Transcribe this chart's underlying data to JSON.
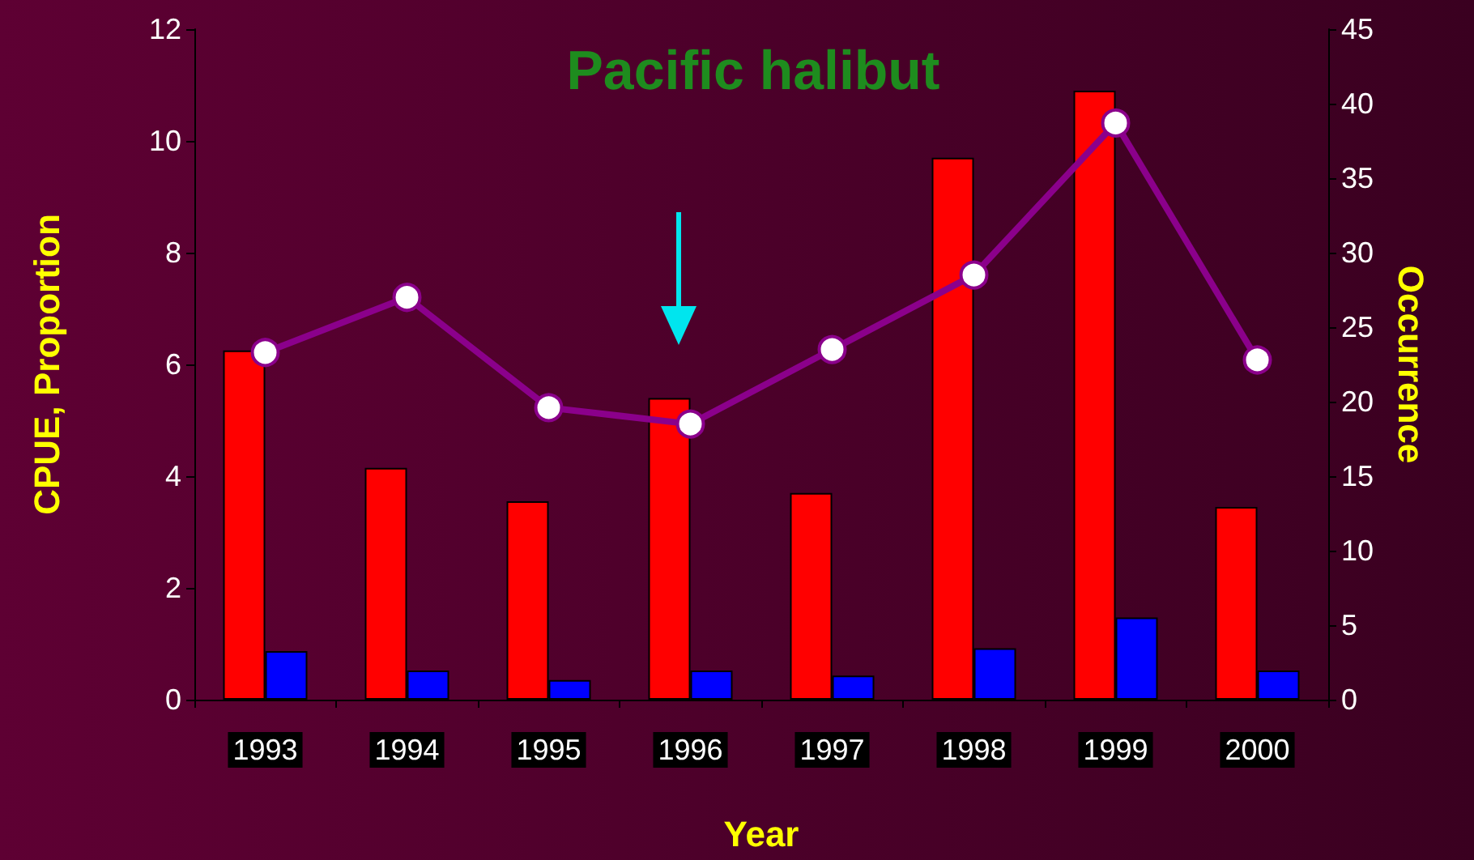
{
  "chart_data": {
    "type": "bar",
    "title": "Pacific halibut",
    "xlabel": "Year",
    "ylabel": "CPUE, Proportion",
    "y2label": "Occurrence",
    "categories": [
      "1993",
      "1994",
      "1995",
      "1996",
      "1997",
      "1998",
      "1999",
      "2000"
    ],
    "series": [
      {
        "color": "#ff0000",
        "values": [
          6.25,
          4.15,
          3.55,
          5.4,
          3.7,
          9.7,
          10.9,
          3.45
        ]
      },
      {
        "color": "#0000ff",
        "values": [
          0.87,
          0.52,
          0.35,
          0.52,
          0.43,
          0.92,
          1.47,
          0.52
        ]
      },
      {
        "type": "line",
        "axis": "y2",
        "color": "#8b008b",
        "marker": "circle",
        "values": [
          23.3,
          27,
          19.6,
          18.5,
          23.5,
          28.5,
          38.7,
          22.8
        ]
      }
    ],
    "ylim": [
      0,
      12
    ],
    "yticks": [
      0,
      2,
      4,
      6,
      8,
      10,
      12
    ],
    "y2lim": [
      0,
      45
    ],
    "y2ticks": [
      0,
      5,
      10,
      15,
      20,
      25,
      30,
      35,
      40,
      45
    ],
    "grid": false
  }
}
